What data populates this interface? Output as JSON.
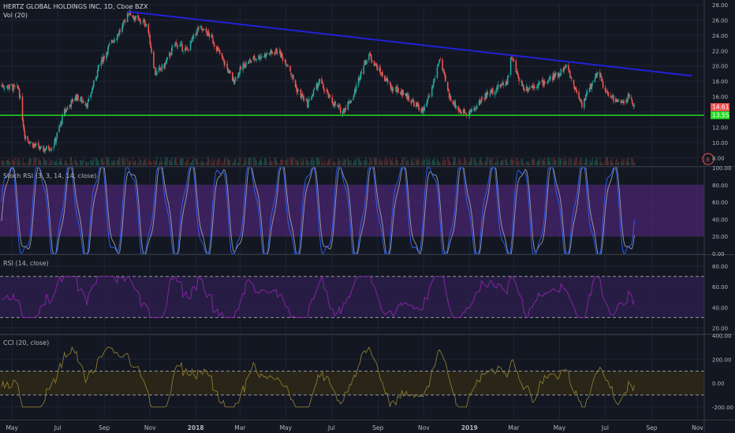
{
  "header": {
    "symbol_title": "HERTZ GLOBAL HOLDINGS INC, 1D, Cboe BZX",
    "volume_label": "Vol (20)"
  },
  "badges": {
    "last_price": "14.61",
    "support_price": "13.55",
    "earnings_marker": "E"
  },
  "colors": {
    "background": "#131722",
    "up_candle": "#26a69a",
    "down_candle": "#ef5350",
    "trendline": "#2121d9",
    "support_line": "#22dd22",
    "stoch_band": "#4a2570",
    "rsi_band": "#2c1f4a",
    "cci_band": "#2a2618",
    "stoch_k": "#2962ff",
    "stoch_d": "#c8c8c8",
    "rsi_line": "#8e24aa",
    "cci_line": "#8b7a30"
  },
  "panes": {
    "stoch": {
      "label": "Stoch RSI (3, 3, 14, 14, close)"
    },
    "rsi": {
      "label": "RSI (14, close)"
    },
    "cci": {
      "label": "CCI (20, close)"
    }
  },
  "chart_data": [
    {
      "type": "candlestick",
      "title": "HERTZ GLOBAL HOLDINGS INC, 1D, Cboe BZX",
      "ylim": [
        7,
        28
      ],
      "y_ticks": [
        "28.00",
        "26.00",
        "24.00",
        "22.00",
        "20.00",
        "18.00",
        "16.00",
        "14.00",
        "12.00",
        "10.00",
        "8.00"
      ],
      "x_ticks": [
        "May",
        "Jul",
        "Sep",
        "Nov",
        "2018",
        "Mar",
        "May",
        "Jul",
        "Sep",
        "Nov",
        "2019",
        "Mar",
        "May",
        "Jul",
        "Sep",
        "Nov"
      ],
      "x_range": [
        "2017-04-15",
        "2019-11-10"
      ],
      "close_path": [
        [
          "2017-04-15",
          17.5
        ],
        [
          "2017-05-10",
          17.0
        ],
        [
          "2017-05-18",
          11.0
        ],
        [
          "2017-05-25",
          10.0
        ],
        [
          "2017-06-10",
          9.0
        ],
        [
          "2017-06-25",
          9.5
        ],
        [
          "2017-07-10",
          14.0
        ],
        [
          "2017-07-25",
          16.0
        ],
        [
          "2017-08-10",
          15.0
        ],
        [
          "2017-08-25",
          20.0
        ],
        [
          "2017-09-10",
          23.0
        ],
        [
          "2017-09-25",
          25.0
        ],
        [
          "2017-10-03",
          27.1
        ],
        [
          "2017-10-15",
          26.0
        ],
        [
          "2017-10-28",
          25.5
        ],
        [
          "2017-11-08",
          19.0
        ],
        [
          "2017-11-20",
          20.0
        ],
        [
          "2017-12-05",
          23.0
        ],
        [
          "2017-12-20",
          22.0
        ],
        [
          "2018-01-05",
          25.0
        ],
        [
          "2018-01-20",
          24.0
        ],
        [
          "2018-02-05",
          21.0
        ],
        [
          "2018-02-20",
          18.0
        ],
        [
          "2018-03-05",
          20.0
        ],
        [
          "2018-03-20",
          21.0
        ],
        [
          "2018-04-05",
          21.5
        ],
        [
          "2018-04-20",
          22.0
        ],
        [
          "2018-05-05",
          20.0
        ],
        [
          "2018-05-15",
          17.0
        ],
        [
          "2018-05-30",
          15.0
        ],
        [
          "2018-06-15",
          18.0
        ],
        [
          "2018-06-30",
          15.5
        ],
        [
          "2018-07-15",
          14.0
        ],
        [
          "2018-07-30",
          16.0
        ],
        [
          "2018-08-10",
          19.5
        ],
        [
          "2018-08-20",
          21.5
        ],
        [
          "2018-09-05",
          19.0
        ],
        [
          "2018-09-20",
          17.0
        ],
        [
          "2018-10-05",
          16.5
        ],
        [
          "2018-10-20",
          15.0
        ],
        [
          "2018-11-01",
          14.0
        ],
        [
          "2018-11-12",
          17.0
        ],
        [
          "2018-11-22",
          21.0
        ],
        [
          "2018-12-05",
          16.0
        ],
        [
          "2018-12-20",
          14.0
        ],
        [
          "2019-01-05",
          14.0
        ],
        [
          "2019-01-20",
          16.0
        ],
        [
          "2019-02-05",
          17.0
        ],
        [
          "2019-02-20",
          18.0
        ],
        [
          "2019-02-26",
          21.3
        ],
        [
          "2019-03-05",
          19.0
        ],
        [
          "2019-03-15",
          17.0
        ],
        [
          "2019-03-30",
          17.5
        ],
        [
          "2019-04-15",
          18.0
        ],
        [
          "2019-04-30",
          19.0
        ],
        [
          "2019-05-10",
          20.0
        ],
        [
          "2019-05-20",
          17.5
        ],
        [
          "2019-05-31",
          15.0
        ],
        [
          "2019-06-10",
          17.0
        ],
        [
          "2019-06-22",
          19.5
        ],
        [
          "2019-07-01",
          16.5
        ],
        [
          "2019-07-15",
          15.5
        ],
        [
          "2019-07-25",
          15.0
        ],
        [
          "2019-08-01",
          16.0
        ],
        [
          "2019-08-10",
          14.6
        ]
      ],
      "annotations": {
        "trendline": {
          "from": [
            "2017-10-03",
            27.1
          ],
          "to": [
            "2019-10-25",
            18.7
          ]
        },
        "support_line": {
          "price": 13.55
        },
        "last_price": 14.61
      }
    },
    {
      "type": "line",
      "title": "Stoch RSI (3, 3, 14, 14, close)",
      "ylim": [
        0,
        100
      ],
      "y_ticks": [
        "100.00",
        "80.00",
        "60.00",
        "40.00",
        "20.00",
        "0.00"
      ],
      "band": [
        20,
        80
      ],
      "oscillation_cycles": 21
    },
    {
      "type": "line",
      "title": "RSI (14, close)",
      "ylim": [
        15,
        90
      ],
      "y_ticks": [
        "80.00",
        "60.00",
        "40.00",
        "20.00"
      ],
      "band": [
        30,
        70
      ],
      "range": [
        30,
        70
      ]
    },
    {
      "type": "line",
      "title": "CCI (20, close)",
      "ylim": [
        -300,
        400
      ],
      "y_ticks": [
        "400.00",
        "200.00",
        "0.00",
        "-200.00"
      ],
      "band": [
        -100,
        100
      ],
      "range": [
        -200,
        300
      ]
    }
  ]
}
